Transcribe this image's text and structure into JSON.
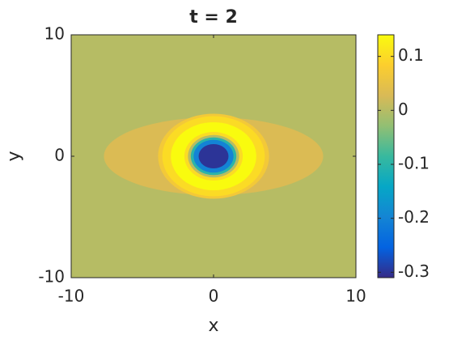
{
  "chart_data": {
    "type": "contour",
    "title": "t = 2",
    "x_label": "x",
    "y_label": "y",
    "xlim": [
      -10,
      10
    ],
    "ylim": [
      -10,
      10
    ],
    "xticks": [
      -10,
      0,
      10
    ],
    "yticks": [
      -10,
      0,
      10
    ],
    "background_level": 0,
    "contours": [
      {
        "level": 0.03,
        "rx": 7.7,
        "ry": 3.2
      },
      {
        "level": 0.07,
        "rx": 3.9,
        "ry": 3.5
      },
      {
        "level": 0.1,
        "rx": 3.6,
        "ry": 3.3
      },
      {
        "level": 0.14,
        "rx": 3.0,
        "ry": 2.8
      },
      {
        "level": 0.1,
        "rx": 2.05,
        "ry": 2.0
      },
      {
        "level": 0.0,
        "rx": 1.8,
        "ry": 1.75
      },
      {
        "level": -0.1,
        "rx": 1.6,
        "ry": 1.55
      },
      {
        "level": -0.2,
        "rx": 1.4,
        "ry": 1.35
      },
      {
        "level": -0.3,
        "rx": 1.05,
        "ry": 1.0
      }
    ],
    "clim": [
      -0.31,
      0.14
    ],
    "cticks": [
      -0.3,
      -0.2,
      -0.1,
      0,
      0.1
    ],
    "colormap": [
      "#352a87",
      "#0363e1",
      "#1485d4",
      "#06a7c6",
      "#38b99e",
      "#92bf73",
      "#d9ba56",
      "#fcce2e",
      "#f9fb0e"
    ]
  }
}
